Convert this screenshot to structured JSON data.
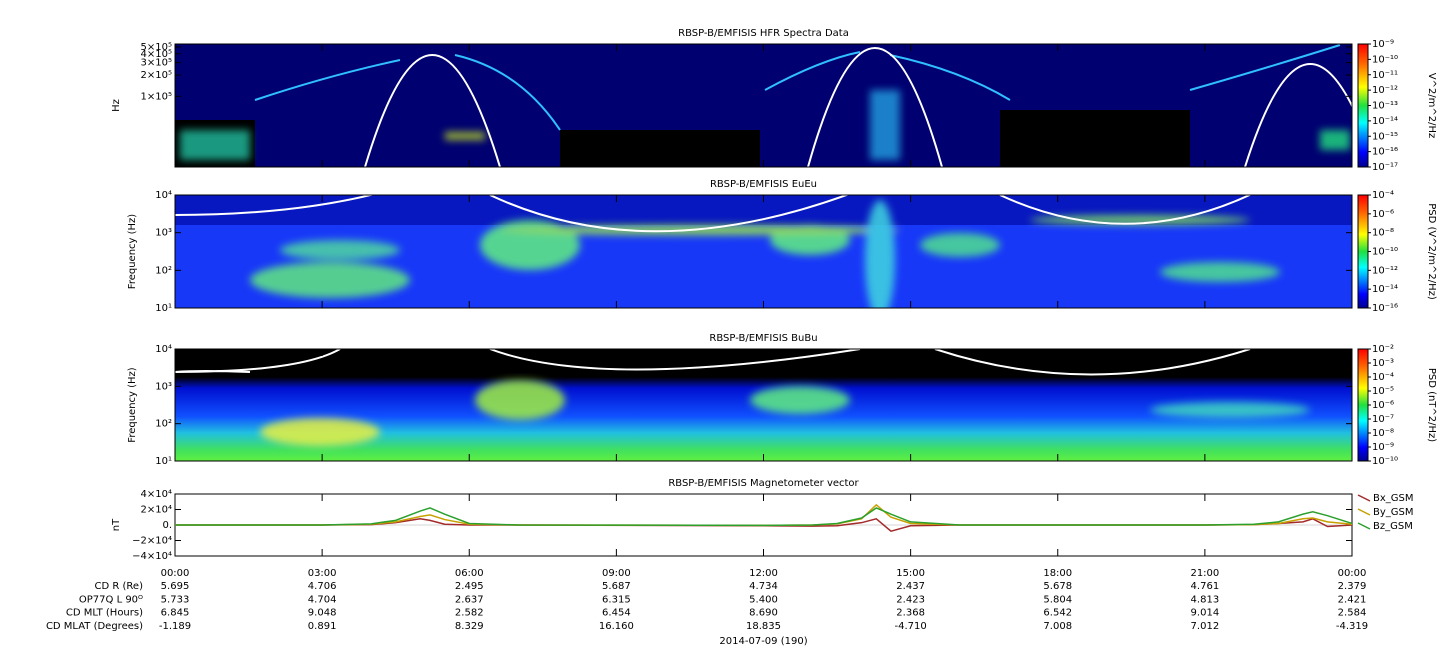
{
  "chart_data": [
    {
      "type": "spectrogram",
      "title": "RBSP-B/EMFISIS  HFR Spectra Data",
      "ylabel": "Hz",
      "log_y": true,
      "ylim": [
        10000,
        550000
      ],
      "yticks": [
        {
          "value": 100000,
          "label": "1×10⁵"
        },
        {
          "value": 200000,
          "label": "2×10⁵"
        },
        {
          "value": 300000,
          "label": "3×10⁵"
        },
        {
          "value": 400000,
          "label": "4×10⁵"
        },
        {
          "value": 500000,
          "label": "5×10⁵"
        }
      ],
      "colorbar": {
        "label": "V^2/m^2/Hz",
        "lim": [
          1e-17,
          1e-09
        ],
        "ticks": [
          {
            "value": 1e-09,
            "label": "10⁻⁹"
          },
          {
            "value": 1e-10,
            "label": "10⁻¹⁰"
          },
          {
            "value": 1e-11,
            "label": "10⁻¹¹"
          },
          {
            "value": 1e-12,
            "label": "10⁻¹²"
          },
          {
            "value": 1e-13,
            "label": "10⁻¹³"
          },
          {
            "value": 1e-14,
            "label": "10⁻¹⁴"
          },
          {
            "value": 1e-15,
            "label": "10⁻¹⁵"
          },
          {
            "value": 1e-16,
            "label": "10⁻¹⁶"
          },
          {
            "value": 1e-17,
            "label": "10⁻¹⁷"
          }
        ]
      }
    },
    {
      "type": "spectrogram",
      "title": "RBSP-B/EMFISIS  EuEu",
      "ylabel": "Frequency (Hz)",
      "log_y": true,
      "ylim": [
        10,
        10000
      ],
      "yticks": [
        {
          "value": 10,
          "label": "10¹"
        },
        {
          "value": 100,
          "label": "10²"
        },
        {
          "value": 1000,
          "label": "10³"
        },
        {
          "value": 10000,
          "label": "10⁴"
        }
      ],
      "colorbar": {
        "label": "PSD (V^2/m^2/Hz)",
        "lim": [
          1e-16,
          0.0001
        ],
        "ticks": [
          {
            "value": 0.0001,
            "label": "10⁻⁴"
          },
          {
            "value": 1e-06,
            "label": "10⁻⁶"
          },
          {
            "value": 1e-08,
            "label": "10⁻⁸"
          },
          {
            "value": 1e-10,
            "label": "10⁻¹⁰"
          },
          {
            "value": 1e-12,
            "label": "10⁻¹²"
          },
          {
            "value": 1e-14,
            "label": "10⁻¹⁴"
          },
          {
            "value": 1e-16,
            "label": "10⁻¹⁶"
          }
        ]
      }
    },
    {
      "type": "spectrogram",
      "title": "RBSP-B/EMFISIS  BuBu",
      "ylabel": "Frequency (Hz)",
      "log_y": true,
      "ylim": [
        10,
        10000
      ],
      "yticks": [
        {
          "value": 10,
          "label": "10¹"
        },
        {
          "value": 100,
          "label": "10²"
        },
        {
          "value": 1000,
          "label": "10³"
        },
        {
          "value": 10000,
          "label": "10⁴"
        }
      ],
      "colorbar": {
        "label": "PSD (nT^2/Hz)",
        "lim": [
          1e-10,
          0.01
        ],
        "ticks": [
          {
            "value": 0.01,
            "label": "10⁻²"
          },
          {
            "value": 0.001,
            "label": "10⁻³"
          },
          {
            "value": 0.0001,
            "label": "10⁻⁴"
          },
          {
            "value": 1e-05,
            "label": "10⁻⁵"
          },
          {
            "value": 1e-06,
            "label": "10⁻⁶"
          },
          {
            "value": 1e-07,
            "label": "10⁻⁷"
          },
          {
            "value": 1e-08,
            "label": "10⁻⁸"
          },
          {
            "value": 1e-09,
            "label": "10⁻⁹"
          },
          {
            "value": 1e-10,
            "label": "10⁻¹⁰"
          }
        ]
      }
    },
    {
      "type": "line",
      "title": "RBSP-B/EMFISIS  Magnetometer vector",
      "ylabel": "nT",
      "x": [
        0,
        3,
        4,
        4.5,
        5,
        5.2,
        5.5,
        6,
        7,
        12,
        13,
        13.5,
        14,
        14.3,
        14.6,
        15,
        16,
        21,
        22,
        22.5,
        23,
        23.2,
        23.5,
        24
      ],
      "xlim": [
        0,
        24
      ],
      "xticks": [
        {
          "value": 0,
          "label": "00:00"
        },
        {
          "value": 3,
          "label": "03:00"
        },
        {
          "value": 6,
          "label": "06:00"
        },
        {
          "value": 9,
          "label": "09:00"
        },
        {
          "value": 12,
          "label": "12:00"
        },
        {
          "value": 15,
          "label": "15:00"
        },
        {
          "value": 18,
          "label": "18:00"
        },
        {
          "value": 21,
          "label": "21:00"
        },
        {
          "value": 24,
          "label": "00:00"
        }
      ],
      "ylim": [
        -40000,
        40000
      ],
      "yticks": [
        {
          "value": -40000,
          "label": "−4×10⁴"
        },
        {
          "value": -20000,
          "label": "−2×10⁴"
        },
        {
          "value": 0,
          "label": "0."
        },
        {
          "value": 20000,
          "label": "2×10⁴"
        },
        {
          "value": 40000,
          "label": "4×10⁴"
        }
      ],
      "legend": "right",
      "series": [
        {
          "name": "Bx_GSM",
          "color": "#a52a2a",
          "values": [
            0,
            0,
            500,
            3000,
            8000,
            6000,
            1000,
            0,
            0,
            -1000,
            -1500,
            -1000,
            3000,
            8000,
            -8000,
            -1000,
            0,
            0,
            500,
            2000,
            4000,
            8000,
            -2000,
            0
          ]
        },
        {
          "name": "By_GSM",
          "color": "#c8a000",
          "values": [
            0,
            0,
            1000,
            4000,
            11000,
            13000,
            7000,
            1000,
            0,
            -500,
            0,
            1500,
            8000,
            26000,
            10000,
            2000,
            0,
            0,
            500,
            2000,
            8000,
            9000,
            4000,
            1000
          ]
        },
        {
          "name": "Bz_GSM",
          "color": "#2ca02c",
          "values": [
            0,
            0,
            1500,
            6000,
            18000,
            22000,
            14000,
            2000,
            0,
            -500,
            0,
            2000,
            9000,
            22000,
            14000,
            4000,
            0,
            0,
            1000,
            4000,
            14000,
            17000,
            12000,
            2000
          ]
        }
      ]
    }
  ],
  "ephemeris": {
    "rows": [
      {
        "label": "CD R (Re)",
        "values": [
          "5.695",
          "4.706",
          "2.495",
          "5.687",
          "4.734",
          "2.437",
          "5.678",
          "4.761",
          "2.379"
        ]
      },
      {
        "label": "OP77Q L 90ᴼ",
        "values": [
          "5.733",
          "4.704",
          "2.637",
          "6.315",
          "5.400",
          "2.423",
          "5.804",
          "4.813",
          "2.421"
        ]
      },
      {
        "label": "CD MLT (Hours)",
        "values": [
          "6.845",
          "9.048",
          "2.582",
          "6.454",
          "8.690",
          "2.368",
          "6.542",
          "9.014",
          "2.584"
        ]
      },
      {
        "label": "CD MLAT (Degrees)",
        "values": [
          "-1.189",
          "0.891",
          "8.329",
          "16.160",
          "18.835",
          "-4.710",
          "7.008",
          "7.012",
          "-4.319"
        ]
      }
    ],
    "date": "2014-07-09 (190)"
  }
}
